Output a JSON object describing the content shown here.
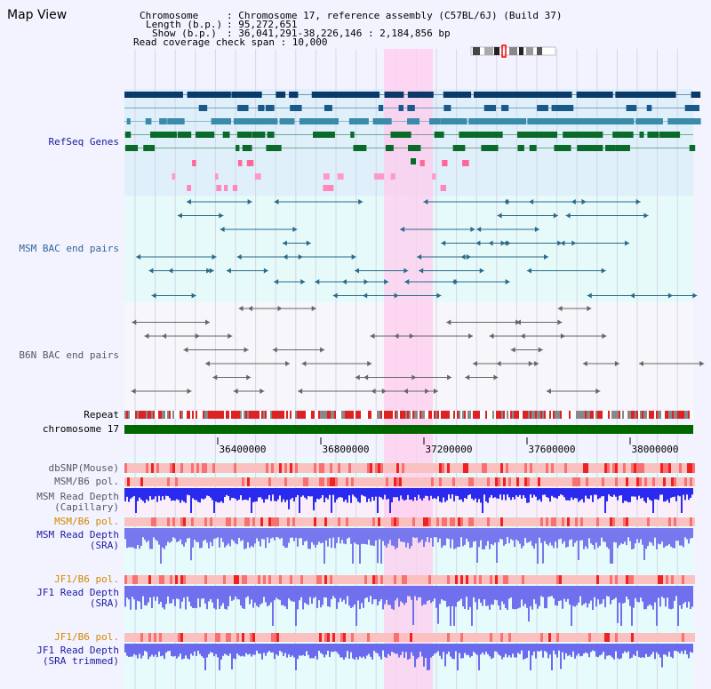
{
  "header": {
    "title": "Map View",
    "chromosome_label": "Chromosome",
    "chromosome_value": ": Chromosome 17, reference assembly (C57BL/6J) (Build 37)",
    "length_label": "Length (b.p.)",
    "length_value": ": 95,272,651",
    "show_label": "Show (b.p.)",
    "show_value": ": 36,041,291-38,226,146 : 2,184,856 bp",
    "coverage_text": "Read coverage check span : 10,000"
  },
  "tracks": {
    "refseq": "RefSeq Genes",
    "msm_bac": "MSM BAC end pairs",
    "b6n_bac": "B6N BAC end pairs",
    "repeat": "Repeat",
    "chromosome": "chromosome 17",
    "dbsnp": "dbSNP(Mouse)",
    "msm_b6_pol_1": "MSM/B6 pol.",
    "msm_depth_cap_1": "MSM Read Depth",
    "msm_depth_cap_2": "(Capillary)",
    "msm_b6_pol_2": "MSM/B6 pol.",
    "msm_depth_sra_1": "MSM Read Depth",
    "msm_depth_sra_2": "(SRA)",
    "jf1_b6_pol_1": "JF1/B6 pol.",
    "jf1_depth_sra_1": "JF1 Read Depth",
    "jf1_depth_sra_2": "(SRA)",
    "jf1_b6_pol_2": "JF1/B6 pol.",
    "jf1_depth_trim_1": "JF1 Read Depth",
    "jf1_depth_trim_2": "(SRA trimmed)"
  },
  "axis": {
    "ticks": [
      "36400000",
      "36800000",
      "37200000",
      "37600000",
      "38000000"
    ]
  },
  "colors": {
    "refseq_label": "#1a1aa0",
    "pol_label": "#d08800",
    "highlight": "#ffccee",
    "chromosome_bar": "#006600",
    "depth_bar": "#2222ee"
  }
}
